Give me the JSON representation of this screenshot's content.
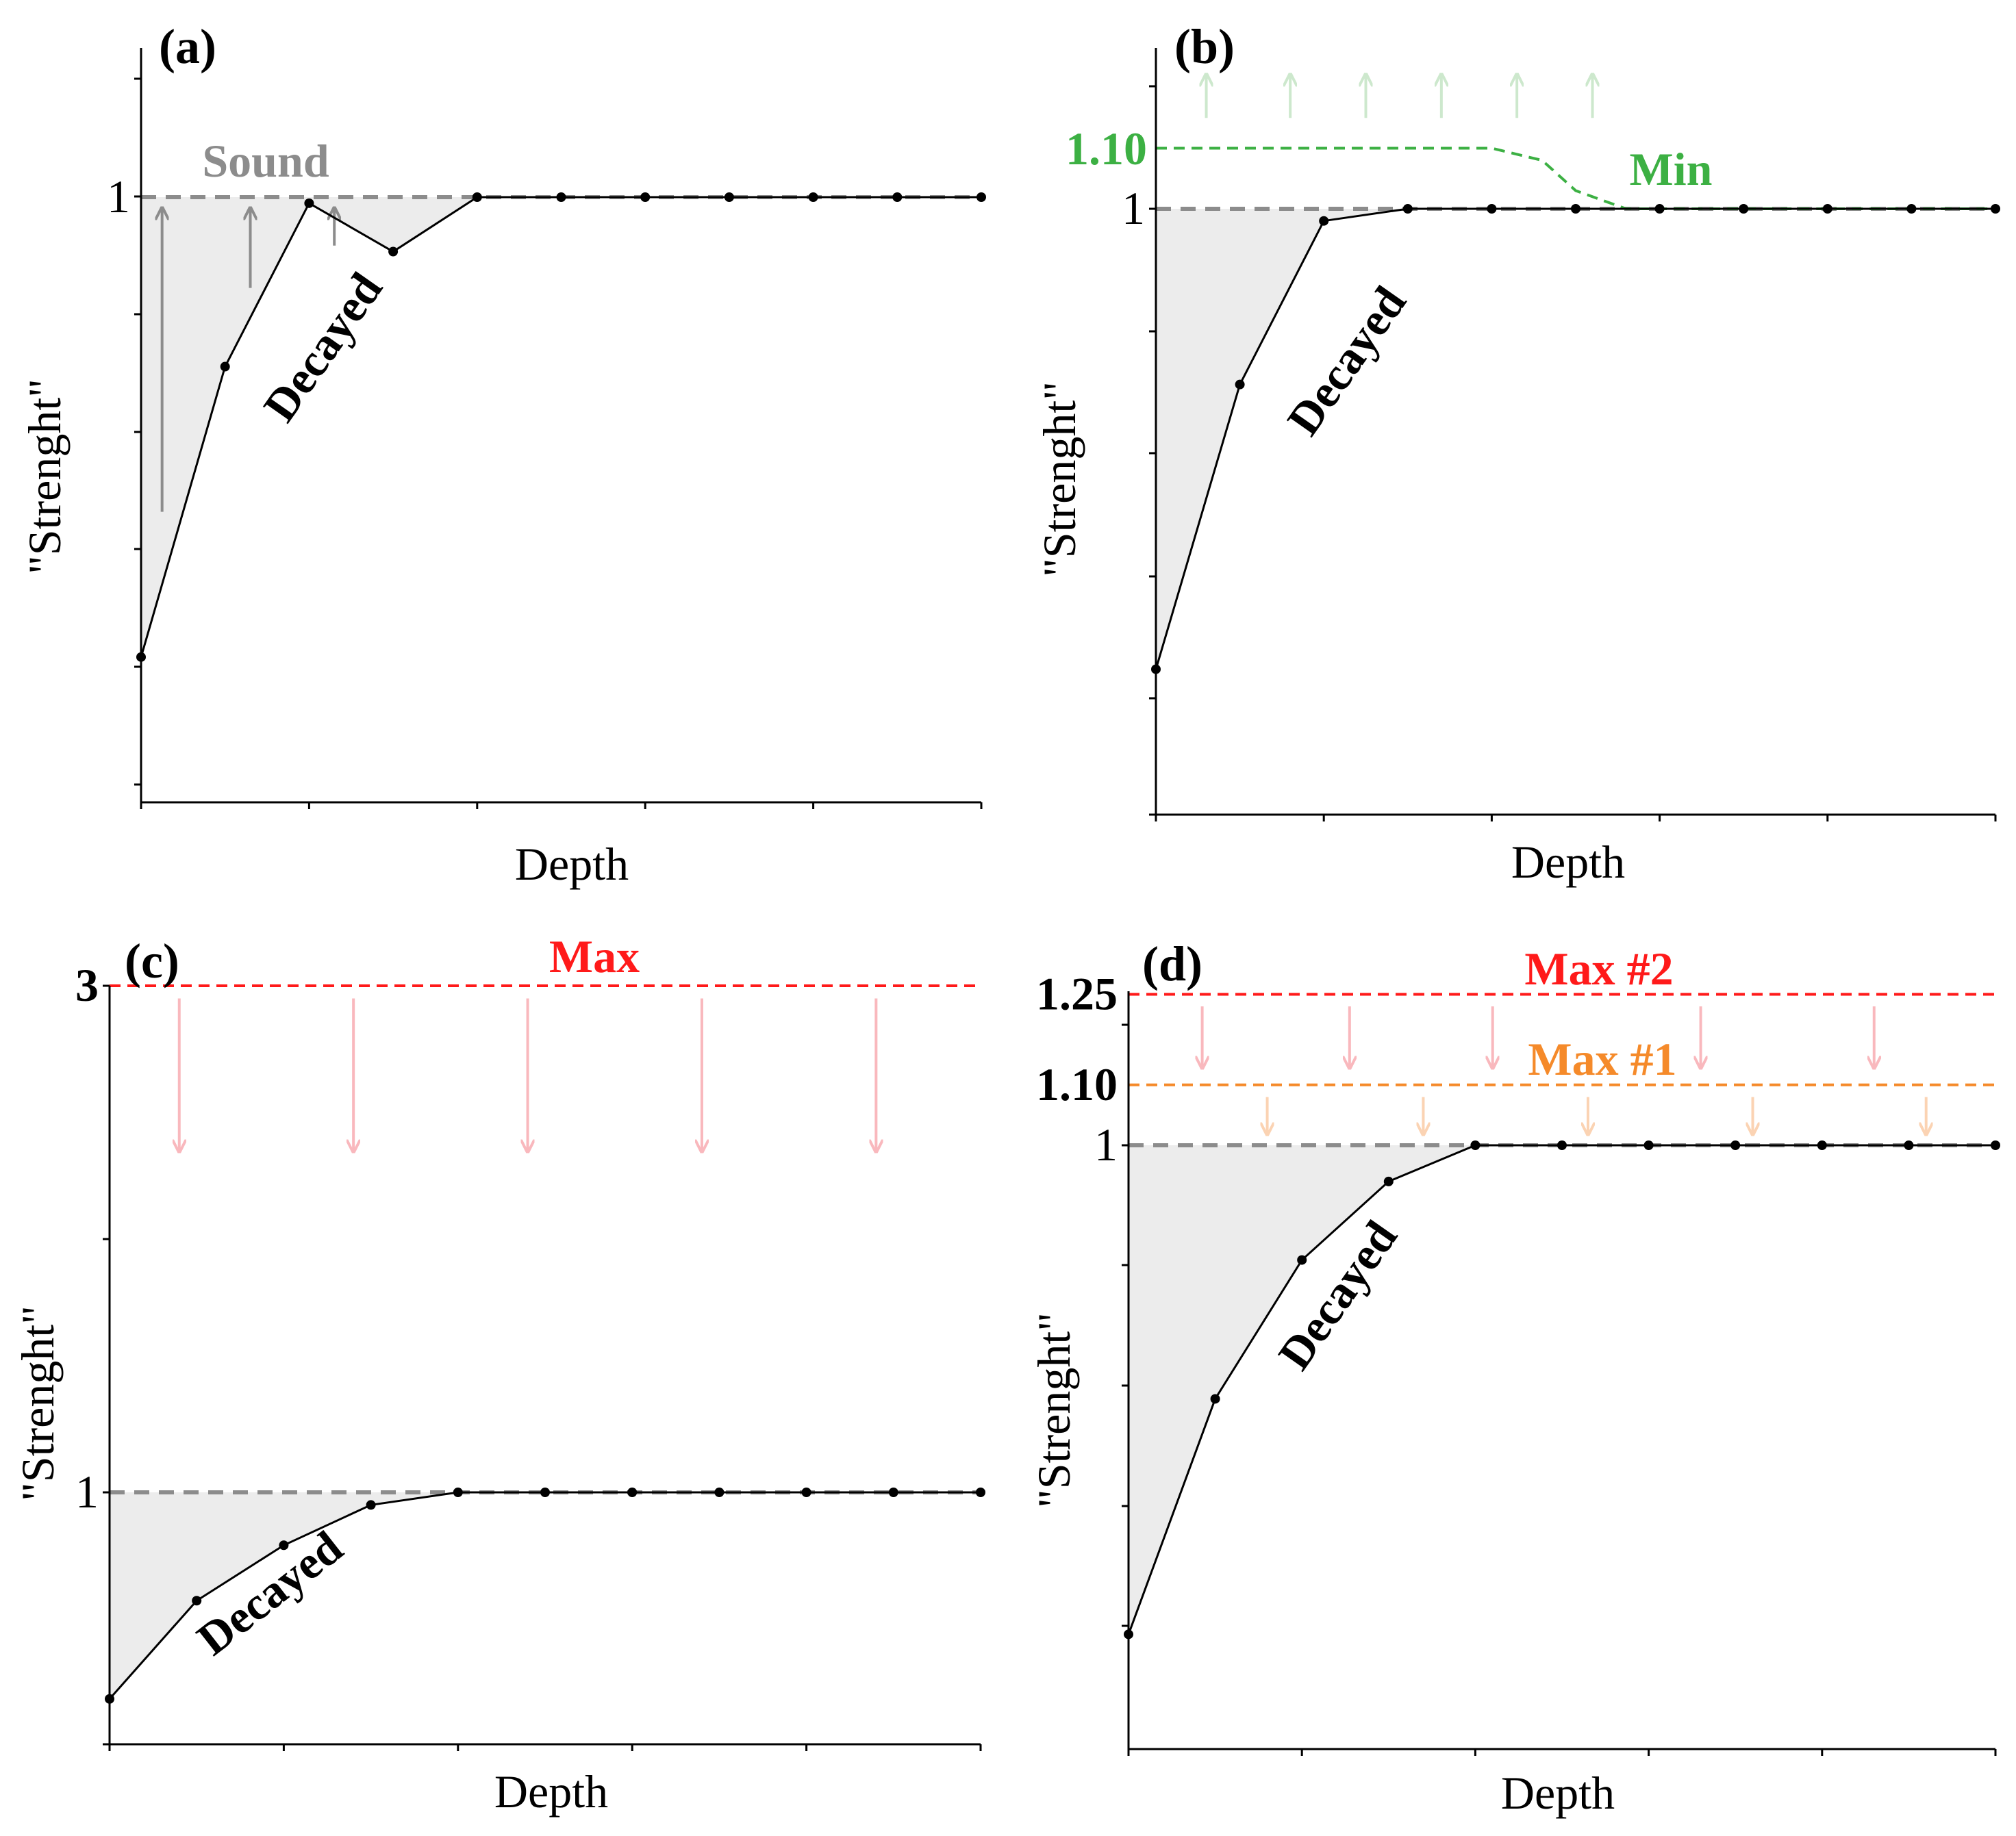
{
  "figure": {
    "colors": {
      "axis": "#000000",
      "sound_line": "#8c8c8c",
      "decay_fill": "#ececec",
      "data_line": "#000000",
      "sound_arrows": "#8c8c8c",
      "min": "#3cb043",
      "min_arrows": "#cde8cd",
      "max": "#ff1a1a",
      "max_arrows": "#f9b8bd",
      "max1": "#f58a2a",
      "max1_arrows": "#fbd3b3"
    }
  },
  "chart_data": [
    {
      "panel": "(a)",
      "type": "line",
      "title": "",
      "xlabel": "Depth",
      "ylabel": "\"Strenght\"",
      "xlim": [
        0,
        10
      ],
      "ylim": [
        0,
        1.25
      ],
      "tick_labels": [
        {
          "y": 1,
          "label": "1"
        }
      ],
      "x": [
        0,
        1,
        2,
        3,
        4,
        5,
        6,
        7,
        8,
        9,
        10
      ],
      "values": [
        0.24,
        0.72,
        0.99,
        0.91,
        1.0,
        1.0,
        1.0,
        1.0,
        1.0,
        1.0,
        1.0
      ],
      "series_name": "Decayed",
      "sound": {
        "label": "Sound",
        "y": 1,
        "color": "#8c8c8c"
      },
      "direction_arrows": [
        {
          "x": 0.25,
          "from": 0.48,
          "to": 0.98,
          "color": "#8c8c8c"
        },
        {
          "x": 1.3,
          "from": 0.85,
          "to": 0.98,
          "color": "#8c8c8c"
        },
        {
          "x": 2.3,
          "from": 0.92,
          "to": 0.98,
          "color": "#8c8c8c"
        }
      ],
      "reference_lines": []
    },
    {
      "panel": "(b)",
      "type": "line",
      "title": "",
      "xlabel": "Depth",
      "ylabel": "\"Strenght\"",
      "xlim": [
        0,
        10
      ],
      "ylim": [
        0,
        1.25
      ],
      "tick_labels": [
        {
          "y": 1,
          "label": "1"
        }
      ],
      "x": [
        0,
        1,
        2,
        3,
        4,
        5,
        6,
        7,
        8,
        9,
        10
      ],
      "values": [
        0.24,
        0.71,
        0.98,
        1.0,
        1.0,
        1.0,
        1.0,
        1.0,
        1.0,
        1.0,
        1.0
      ],
      "series_name": "Decayed",
      "direction_arrows": [],
      "reference_lines": [
        {
          "label": "Min",
          "value_label": "1.10",
          "color": "#3cb043",
          "x": [
            0,
            4.0,
            4.6,
            5.0,
            5.6,
            10
          ],
          "y": [
            1.1,
            1.1,
            1.08,
            1.03,
            1.0,
            1.0
          ]
        }
      ],
      "min_arrows": [
        {
          "x": 0.6,
          "from": 1.15,
          "to": 1.22,
          "color": "#cde8cd"
        },
        {
          "x": 1.6,
          "from": 1.15,
          "to": 1.22,
          "color": "#cde8cd"
        },
        {
          "x": 2.5,
          "from": 1.15,
          "to": 1.22,
          "color": "#cde8cd"
        },
        {
          "x": 3.4,
          "from": 1.15,
          "to": 1.22,
          "color": "#cde8cd"
        },
        {
          "x": 4.3,
          "from": 1.15,
          "to": 1.22,
          "color": "#cde8cd"
        },
        {
          "x": 5.2,
          "from": 1.15,
          "to": 1.22,
          "color": "#cde8cd"
        }
      ]
    },
    {
      "panel": "(c)",
      "type": "line",
      "title": "",
      "xlabel": "Depth",
      "ylabel": "\"Strenght\"",
      "xlim": [
        0,
        10
      ],
      "ylim": [
        0,
        3
      ],
      "tick_labels": [
        {
          "y": 1,
          "label": "1"
        },
        {
          "y": 3,
          "label": "3",
          "color": "#ff1a1a"
        }
      ],
      "x": [
        0,
        1,
        2,
        3,
        4,
        5,
        6,
        7,
        8,
        9,
        10
      ],
      "values": [
        0.18,
        0.57,
        0.79,
        0.95,
        1.0,
        1.0,
        1.0,
        1.0,
        1.0,
        1.0,
        1.0
      ],
      "series_name": "Decayed",
      "direction_arrows": [],
      "reference_lines": [
        {
          "label": "Max",
          "value_label": "3",
          "color": "#ff1a1a",
          "x": [
            0,
            10
          ],
          "y": [
            3,
            3
          ]
        }
      ],
      "max_arrows": [
        {
          "x": 0.8,
          "from": 2.95,
          "to": 2.35,
          "color": "#f9b8bd"
        },
        {
          "x": 2.8,
          "from": 2.95,
          "to": 2.35,
          "color": "#f9b8bd"
        },
        {
          "x": 4.8,
          "from": 2.95,
          "to": 2.35,
          "color": "#f9b8bd"
        },
        {
          "x": 6.8,
          "from": 2.95,
          "to": 2.35,
          "color": "#f9b8bd"
        },
        {
          "x": 8.8,
          "from": 2.95,
          "to": 2.35,
          "color": "#f9b8bd"
        }
      ]
    },
    {
      "panel": "(d)",
      "type": "line",
      "title": "",
      "xlabel": "Depth",
      "ylabel": "\"Strenght\"",
      "xlim": [
        0,
        10
      ],
      "ylim": [
        0,
        1.25
      ],
      "tick_labels": [
        {
          "y": 1,
          "label": "1"
        },
        {
          "y": 1.1,
          "label": "1.10",
          "color": "#f58a2a"
        },
        {
          "y": 1.25,
          "label": "1.25",
          "color": "#ff1a1a"
        }
      ],
      "x": [
        0,
        1,
        2,
        3,
        4,
        5,
        6,
        7,
        8,
        9,
        10
      ],
      "values": [
        0.19,
        0.58,
        0.81,
        0.94,
        1.0,
        1.0,
        1.0,
        1.0,
        1.0,
        1.0,
        1.0
      ],
      "series_name": "Decayed",
      "direction_arrows": [],
      "reference_lines": [
        {
          "label": "Max #2",
          "value_label": "1.25",
          "color": "#ff1a1a",
          "x": [
            0,
            10
          ],
          "y": [
            1.25,
            1.25
          ]
        },
        {
          "label": "Max #1",
          "value_label": "1.10",
          "color": "#f58a2a",
          "x": [
            0,
            10
          ],
          "y": [
            1.1,
            1.1
          ]
        }
      ],
      "max_arrows": [
        {
          "x": 0.85,
          "from": 1.23,
          "to": 1.13,
          "color": "#f9b8bd"
        },
        {
          "x": 2.55,
          "from": 1.23,
          "to": 1.13,
          "color": "#f9b8bd"
        },
        {
          "x": 4.2,
          "from": 1.23,
          "to": 1.13,
          "color": "#f9b8bd"
        },
        {
          "x": 6.6,
          "from": 1.23,
          "to": 1.13,
          "color": "#f9b8bd"
        },
        {
          "x": 8.6,
          "from": 1.23,
          "to": 1.13,
          "color": "#f9b8bd"
        }
      ],
      "max1_arrows": [
        {
          "x": 1.6,
          "from": 1.08,
          "to": 1.02,
          "color": "#fbd3b3"
        },
        {
          "x": 3.4,
          "from": 1.08,
          "to": 1.02,
          "color": "#fbd3b3"
        },
        {
          "x": 5.3,
          "from": 1.08,
          "to": 1.02,
          "color": "#fbd3b3"
        },
        {
          "x": 7.2,
          "from": 1.08,
          "to": 1.02,
          "color": "#fbd3b3"
        },
        {
          "x": 9.2,
          "from": 1.08,
          "to": 1.02,
          "color": "#fbd3b3"
        }
      ]
    }
  ]
}
